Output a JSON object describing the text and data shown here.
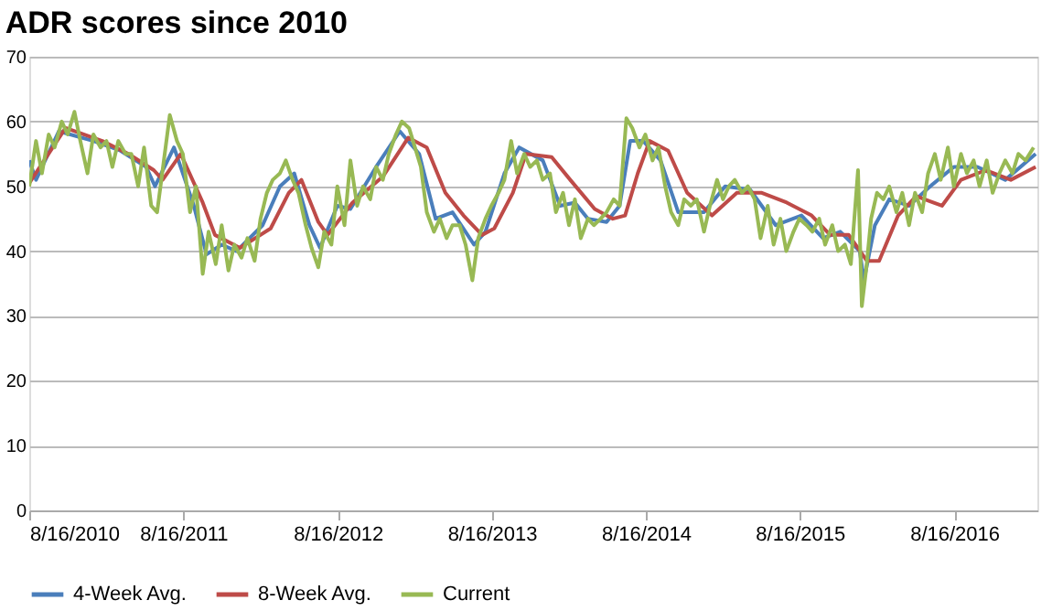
{
  "chart_data": {
    "type": "line",
    "title": "ADR scores since 2010",
    "xlim": [
      "2010-08-16",
      "2017-03-01"
    ],
    "xticks": [
      {
        "value": "2010-08-16",
        "label": "8/16/2010"
      },
      {
        "value": "2011-08-16",
        "label": "8/16/2011"
      },
      {
        "value": "2012-08-16",
        "label": "8/16/2012"
      },
      {
        "value": "2013-08-16",
        "label": "8/16/2013"
      },
      {
        "value": "2014-08-16",
        "label": "8/16/2014"
      },
      {
        "value": "2015-08-16",
        "label": "8/16/2015"
      },
      {
        "value": "2016-08-16",
        "label": "8/16/2016"
      }
    ],
    "ylim": [
      0,
      70
    ],
    "yticks": [
      0,
      10,
      20,
      30,
      40,
      50,
      60,
      70
    ],
    "grid": "y",
    "legend": "bottom",
    "series": [
      {
        "name": "4-Week Avg.",
        "color": "#4a7ebb",
        "x": [
          "2010-08-16",
          "2010-09-01",
          "2010-10-25",
          "2011-01-15",
          "2011-03-20",
          "2011-05-20",
          "2011-06-10",
          "2011-07-25",
          "2011-09-10",
          "2011-10-10",
          "2011-11-15",
          "2011-12-20",
          "2012-02-20",
          "2012-04-01",
          "2012-05-05",
          "2012-06-10",
          "2012-07-05",
          "2012-08-15",
          "2012-09-15",
          "2012-11-15",
          "2013-01-10",
          "2013-02-25",
          "2013-04-05",
          "2013-05-15",
          "2013-07-05",
          "2013-08-01",
          "2013-09-15",
          "2013-10-20",
          "2013-12-15",
          "2014-01-25",
          "2014-03-01",
          "2014-04-01",
          "2014-05-15",
          "2014-06-15",
          "2014-07-10",
          "2014-08-10",
          "2014-09-20",
          "2014-11-01",
          "2015-01-01",
          "2015-02-20",
          "2015-04-20",
          "2015-06-20",
          "2015-08-20",
          "2015-10-10",
          "2015-11-20",
          "2016-01-05",
          "2016-01-15",
          "2016-02-10",
          "2016-03-15",
          "2016-05-01",
          "2016-06-20",
          "2016-08-15",
          "2016-10-10",
          "2016-12-15",
          "2017-02-25"
        ],
        "values": [
          54,
          51,
          58.5,
          57,
          55.5,
          53,
          50,
          56,
          47,
          39.5,
          41,
          40,
          44,
          50,
          52,
          44,
          40.5,
          47,
          46.5,
          53,
          58.5,
          55,
          45,
          46,
          41,
          43,
          52,
          56,
          54,
          47,
          47.5,
          45,
          44.5,
          47,
          57,
          57,
          54,
          46,
          46,
          50,
          49.5,
          44,
          45.5,
          42,
          43,
          40,
          35.5,
          44,
          48,
          47,
          50,
          53,
          53,
          51,
          55
        ]
      },
      {
        "name": "8-Week Avg.",
        "color": "#be4b48",
        "x": [
          "2010-08-16",
          "2010-11-10",
          "2011-02-05",
          "2011-04-08",
          "2011-06-07",
          "2011-06-28",
          "2011-08-10",
          "2011-10-01",
          "2011-10-30",
          "2011-12-28",
          "2012-03-10",
          "2012-04-22",
          "2012-05-22",
          "2012-07-01",
          "2012-07-23",
          "2012-09-20",
          "2012-12-01",
          "2013-01-30",
          "2013-03-15",
          "2013-04-28",
          "2013-06-10",
          "2013-07-24",
          "2013-08-22",
          "2013-10-05",
          "2013-11-05",
          "2014-01-05",
          "2014-02-18",
          "2014-04-17",
          "2014-05-30",
          "2014-06-28",
          "2014-07-28",
          "2014-08-25",
          "2014-10-08",
          "2014-11-22",
          "2015-01-20",
          "2015-03-20",
          "2015-05-18",
          "2015-07-16",
          "2015-09-13",
          "2015-10-27",
          "2015-12-10",
          "2016-01-22",
          "2016-02-20",
          "2016-04-05",
          "2016-05-18",
          "2016-07-18",
          "2016-09-01",
          "2016-10-30",
          "2016-12-28",
          "2017-02-25"
        ],
        "values": [
          50.5,
          59,
          57,
          55,
          52.5,
          51,
          55,
          47.5,
          42.5,
          40.5,
          43.5,
          49,
          51,
          44.5,
          42.5,
          47.5,
          51.5,
          57.5,
          56,
          49,
          45.5,
          42.5,
          43.5,
          49,
          55,
          54.5,
          51,
          46.5,
          45,
          45.5,
          52,
          57,
          55.5,
          49,
          45.5,
          49,
          49,
          47.5,
          45.5,
          42.5,
          42.5,
          38.5,
          38.5,
          45.5,
          48.5,
          47,
          51,
          52.5,
          51,
          53
        ]
      },
      {
        "name": "Current",
        "color": "#98b954",
        "x": [
          "2010-08-16",
          "2010-09-01",
          "2010-09-15",
          "2010-10-01",
          "2010-10-15",
          "2010-11-01",
          "2010-11-15",
          "2010-12-01",
          "2010-12-15",
          "2011-01-01",
          "2011-01-15",
          "2011-02-01",
          "2011-02-15",
          "2011-03-01",
          "2011-03-15",
          "2011-04-01",
          "2011-04-15",
          "2011-05-01",
          "2011-05-15",
          "2011-06-01",
          "2011-06-15",
          "2011-07-01",
          "2011-07-15",
          "2011-08-01",
          "2011-08-15",
          "2011-09-01",
          "2011-09-15",
          "2011-10-01",
          "2011-10-15",
          "2011-11-01",
          "2011-11-15",
          "2011-12-01",
          "2011-12-15",
          "2012-01-01",
          "2012-01-15",
          "2012-02-01",
          "2012-02-15",
          "2012-03-01",
          "2012-03-15",
          "2012-04-01",
          "2012-04-15",
          "2012-05-01",
          "2012-05-15",
          "2012-06-01",
          "2012-06-15",
          "2012-07-01",
          "2012-07-15",
          "2012-08-01",
          "2012-08-15",
          "2012-09-01",
          "2012-09-15",
          "2012-10-01",
          "2012-10-15",
          "2012-11-01",
          "2012-11-15",
          "2012-12-01",
          "2012-12-15",
          "2013-01-01",
          "2013-01-15",
          "2013-02-01",
          "2013-02-15",
          "2013-03-01",
          "2013-03-15",
          "2013-04-01",
          "2013-04-15",
          "2013-05-01",
          "2013-05-15",
          "2013-06-01",
          "2013-06-15",
          "2013-07-01",
          "2013-07-15",
          "2013-08-01",
          "2013-08-15",
          "2013-09-01",
          "2013-09-15",
          "2013-10-01",
          "2013-10-15",
          "2013-11-01",
          "2013-11-15",
          "2013-12-01",
          "2013-12-15",
          "2014-01-01",
          "2014-01-15",
          "2014-02-01",
          "2014-02-15",
          "2014-03-01",
          "2014-03-15",
          "2014-04-01",
          "2014-04-15",
          "2014-05-01",
          "2014-05-15",
          "2014-06-01",
          "2014-06-15",
          "2014-07-01",
          "2014-07-15",
          "2014-08-01",
          "2014-08-15",
          "2014-09-01",
          "2014-09-15",
          "2014-10-01",
          "2014-10-15",
          "2014-11-01",
          "2014-11-15",
          "2014-12-01",
          "2014-12-15",
          "2015-01-01",
          "2015-01-15",
          "2015-02-01",
          "2015-02-15",
          "2015-03-01",
          "2015-03-15",
          "2015-04-01",
          "2015-04-15",
          "2015-05-01",
          "2015-05-15",
          "2015-06-01",
          "2015-06-15",
          "2015-07-01",
          "2015-07-15",
          "2015-08-01",
          "2015-08-15",
          "2015-09-01",
          "2015-09-15",
          "2015-10-01",
          "2015-10-15",
          "2015-11-01",
          "2015-11-15",
          "2015-12-01",
          "2015-12-15",
          "2016-01-01",
          "2016-01-10",
          "2016-01-20",
          "2016-02-01",
          "2016-02-15",
          "2016-03-01",
          "2016-03-15",
          "2016-04-01",
          "2016-04-15",
          "2016-05-01",
          "2016-05-15",
          "2016-06-01",
          "2016-06-15",
          "2016-07-01",
          "2016-07-15",
          "2016-08-01",
          "2016-08-15",
          "2016-09-01",
          "2016-09-15",
          "2016-10-01",
          "2016-10-15",
          "2016-11-01",
          "2016-11-15",
          "2016-12-01",
          "2016-12-15",
          "2017-01-01",
          "2017-01-15",
          "2017-02-01",
          "2017-02-20"
        ],
        "values": [
          50,
          57,
          52,
          58,
          56,
          60,
          58,
          61.5,
          57,
          52,
          58,
          56,
          57,
          53,
          57,
          55,
          55,
          50,
          56,
          47,
          46,
          54,
          61,
          57,
          55,
          46,
          50,
          36.5,
          43,
          38,
          44,
          37,
          41,
          39,
          42,
          38.5,
          45,
          49,
          51,
          52,
          54,
          51,
          49,
          44,
          40.5,
          37.5,
          43,
          41,
          50,
          44,
          54,
          47,
          50,
          48,
          53,
          51,
          55,
          58,
          60,
          59,
          56,
          53,
          46,
          43,
          45,
          42,
          44,
          44,
          41,
          35.5,
          42,
          45,
          47,
          49,
          51,
          57,
          52,
          55,
          53,
          54,
          51,
          52,
          46,
          49,
          44,
          48,
          42,
          45,
          44,
          45,
          46,
          48,
          47,
          60.5,
          59,
          56,
          58,
          54,
          56,
          50,
          46,
          44,
          48,
          47,
          48,
          43,
          47,
          51,
          48,
          50,
          51,
          49,
          50,
          48,
          42,
          47,
          41,
          45,
          40,
          43,
          45,
          44,
          43,
          45,
          41,
          44,
          40,
          41,
          38,
          52.5,
          31.5,
          37,
          45,
          49,
          48,
          50,
          46,
          49,
          44,
          49,
          46,
          52,
          55,
          51,
          56,
          50,
          55,
          52,
          54,
          50,
          54,
          49,
          52,
          54,
          52,
          55,
          54,
          56
        ]
      }
    ]
  }
}
